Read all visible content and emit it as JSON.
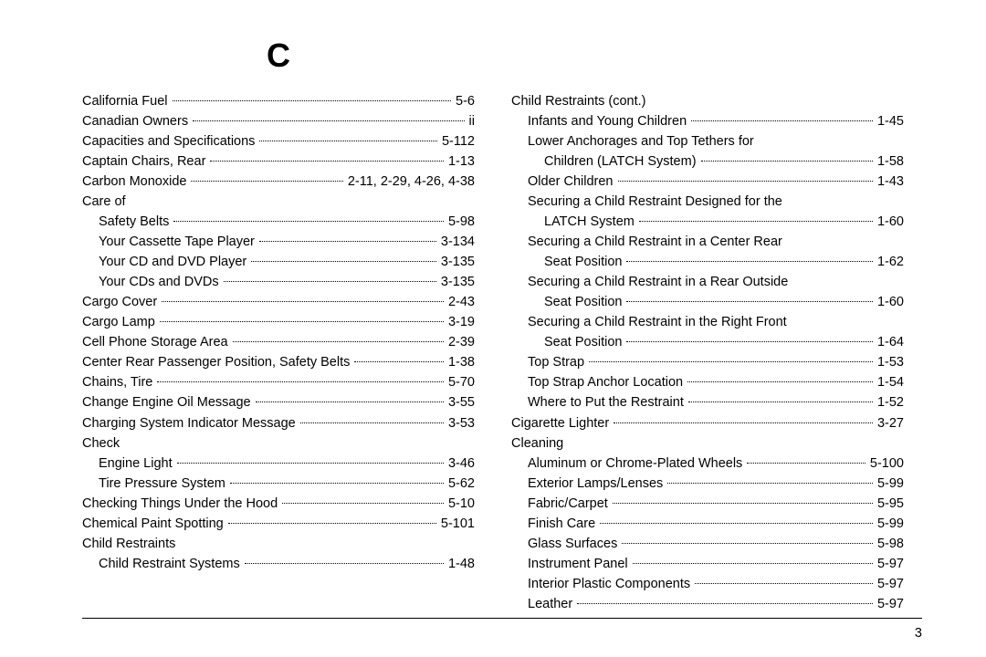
{
  "section_letter": "C",
  "page_number": "3",
  "left": [
    {
      "label": "California Fuel",
      "page": "5-6",
      "indent": 0
    },
    {
      "label": "Canadian Owners",
      "page": "ii",
      "indent": 0
    },
    {
      "label": "Capacities and Specifications",
      "page": "5-112",
      "indent": 0
    },
    {
      "label": "Captain Chairs, Rear",
      "page": "1-13",
      "indent": 0
    },
    {
      "label": "Carbon Monoxide",
      "page": "2-11, 2-29, 4-26, 4-38",
      "indent": 0
    },
    {
      "label": "Care of",
      "page": "",
      "indent": 0,
      "nodots": true
    },
    {
      "label": "Safety Belts",
      "page": "5-98",
      "indent": 1
    },
    {
      "label": "Your Cassette Tape Player",
      "page": "3-134",
      "indent": 1
    },
    {
      "label": "Your CD and DVD Player",
      "page": "3-135",
      "indent": 1
    },
    {
      "label": "Your CDs and DVDs",
      "page": "3-135",
      "indent": 1
    },
    {
      "label": "Cargo Cover",
      "page": "2-43",
      "indent": 0
    },
    {
      "label": "Cargo Lamp",
      "page": "3-19",
      "indent": 0
    },
    {
      "label": "Cell Phone Storage Area",
      "page": "2-39",
      "indent": 0
    },
    {
      "label": "Center Rear Passenger Position, Safety Belts",
      "page": "1-38",
      "indent": 0
    },
    {
      "label": "Chains, Tire",
      "page": "5-70",
      "indent": 0
    },
    {
      "label": "Change Engine Oil Message",
      "page": "3-55",
      "indent": 0
    },
    {
      "label": "Charging System Indicator Message",
      "page": "3-53",
      "indent": 0
    },
    {
      "label": "Check",
      "page": "",
      "indent": 0,
      "nodots": true
    },
    {
      "label": "Engine Light",
      "page": "3-46",
      "indent": 1
    },
    {
      "label": "Tire Pressure System",
      "page": "5-62",
      "indent": 1
    },
    {
      "label": "Checking Things Under the Hood",
      "page": "5-10",
      "indent": 0
    },
    {
      "label": "Chemical Paint Spotting",
      "page": "5-101",
      "indent": 0
    },
    {
      "label": "Child Restraints",
      "page": "",
      "indent": 0,
      "nodots": true
    },
    {
      "label": "Child Restraint Systems",
      "page": "1-48",
      "indent": 1
    }
  ],
  "right": [
    {
      "label": "Child Restraints (cont.)",
      "page": "",
      "indent": 0,
      "nodots": true
    },
    {
      "label": "Infants and Young Children",
      "page": "1-45",
      "indent": 1
    },
    {
      "label": "Lower Anchorages and Top Tethers for",
      "page": "",
      "indent": 1,
      "nodots": true
    },
    {
      "label": "Children (LATCH System)",
      "page": "1-58",
      "indent": 2
    },
    {
      "label": "Older Children",
      "page": "1-43",
      "indent": 1
    },
    {
      "label": "Securing a Child Restraint Designed for the",
      "page": "",
      "indent": 1,
      "nodots": true
    },
    {
      "label": "LATCH System",
      "page": "1-60",
      "indent": 2
    },
    {
      "label": "Securing a Child Restraint in a Center Rear",
      "page": "",
      "indent": 1,
      "nodots": true
    },
    {
      "label": "Seat Position",
      "page": "1-62",
      "indent": 2
    },
    {
      "label": "Securing a Child Restraint in a Rear Outside",
      "page": "",
      "indent": 1,
      "nodots": true
    },
    {
      "label": "Seat Position",
      "page": "1-60",
      "indent": 2
    },
    {
      "label": "Securing a Child Restraint in the Right Front",
      "page": "",
      "indent": 1,
      "nodots": true
    },
    {
      "label": "Seat Position",
      "page": "1-64",
      "indent": 2
    },
    {
      "label": "Top Strap",
      "page": "1-53",
      "indent": 1
    },
    {
      "label": "Top Strap Anchor Location",
      "page": "1-54",
      "indent": 1
    },
    {
      "label": "Where to Put the Restraint",
      "page": "1-52",
      "indent": 1
    },
    {
      "label": "Cigarette Lighter",
      "page": "3-27",
      "indent": 0
    },
    {
      "label": "Cleaning",
      "page": "",
      "indent": 0,
      "nodots": true
    },
    {
      "label": "Aluminum or Chrome-Plated Wheels",
      "page": "5-100",
      "indent": 1
    },
    {
      "label": "Exterior Lamps/Lenses",
      "page": "5-99",
      "indent": 1
    },
    {
      "label": "Fabric/Carpet",
      "page": "5-95",
      "indent": 1
    },
    {
      "label": "Finish Care",
      "page": "5-99",
      "indent": 1
    },
    {
      "label": "Glass Surfaces",
      "page": "5-98",
      "indent": 1
    },
    {
      "label": "Instrument Panel",
      "page": "5-97",
      "indent": 1
    },
    {
      "label": "Interior Plastic Components",
      "page": "5-97",
      "indent": 1
    },
    {
      "label": "Leather",
      "page": "5-97",
      "indent": 1
    }
  ]
}
